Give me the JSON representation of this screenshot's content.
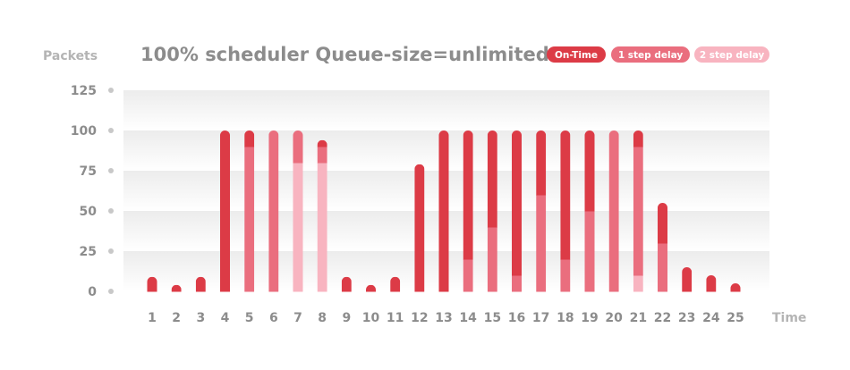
{
  "chart_data": {
    "type": "bar",
    "stacked": true,
    "title": "100% scheduler Queue-size=unlimited",
    "ylabel": "Packets",
    "xlabel": "Time",
    "ylim": [
      0,
      125
    ],
    "yticks": [
      0,
      25,
      50,
      75,
      100,
      125
    ],
    "grid": true,
    "legend_position": "top-right",
    "categories": [
      "1",
      "2",
      "3",
      "4",
      "5",
      "6",
      "7",
      "8",
      "9",
      "10",
      "11",
      "12",
      "13",
      "14",
      "15",
      "16",
      "17",
      "18",
      "19",
      "20",
      "21",
      "22",
      "23",
      "24",
      "25"
    ],
    "series": [
      {
        "name": "2 step delay",
        "color": "#f8b4c0",
        "values": [
          0,
          0,
          0,
          0,
          0,
          0,
          80,
          80,
          0,
          0,
          0,
          0,
          0,
          0,
          0,
          0,
          0,
          0,
          0,
          0,
          10,
          0,
          0,
          0,
          0
        ]
      },
      {
        "name": "1 step delay",
        "color": "#ea6e7e",
        "values": [
          0,
          0,
          0,
          0,
          90,
          100,
          20,
          10,
          0,
          0,
          0,
          0,
          0,
          20,
          40,
          10,
          60,
          20,
          50,
          100,
          80,
          30,
          0,
          0,
          0
        ]
      },
      {
        "name": "On-Time",
        "color": "#dc3b46",
        "values": [
          9,
          4,
          9,
          100,
          10,
          0,
          0,
          4,
          9,
          4,
          9,
          79,
          100,
          80,
          60,
          90,
          40,
          80,
          50,
          0,
          10,
          25,
          15,
          10,
          5
        ]
      }
    ]
  }
}
